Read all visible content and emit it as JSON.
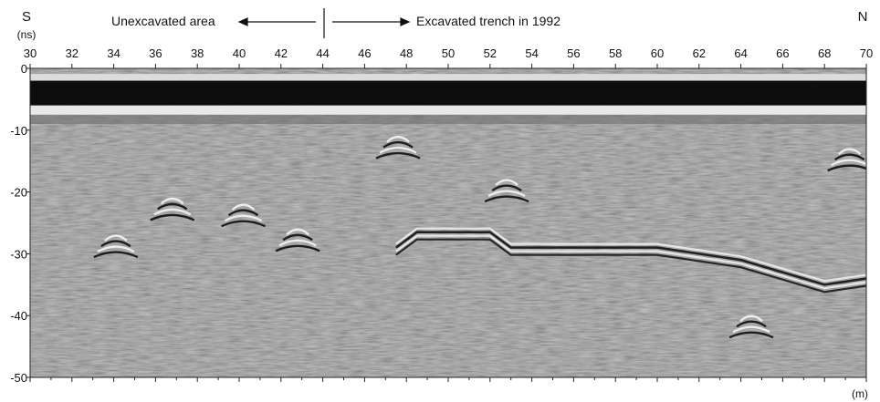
{
  "header": {
    "left_dir": "S",
    "right_dir": "N",
    "y_unit": "(ns)",
    "x_unit": "(m)",
    "annot_left": "Unexcavated area",
    "annot_right": "Excavated trench in 1992"
  },
  "colors": {
    "background": "#ffffff",
    "radargram_mid_gray": "#8a8a8a",
    "text": "#111111"
  },
  "chart_data": {
    "type": "heatmap",
    "subtype": "GPR radargram",
    "title": "",
    "xlabel": "(m)",
    "ylabel": "(ns)",
    "xlim": [
      30,
      70
    ],
    "ylim": [
      -50,
      0
    ],
    "x_ticks": [
      "30",
      "32",
      "34",
      "36",
      "38",
      "40",
      "42",
      "44",
      "46",
      "48",
      "50",
      "52",
      "54",
      "56",
      "58",
      "60",
      "62",
      "64",
      "66",
      "68",
      "70"
    ],
    "y_ticks": [
      "0",
      "-10",
      "-20",
      "-30",
      "-40",
      "-50"
    ],
    "divider_x": 44,
    "annotations": [
      {
        "text": "Unexcavated area",
        "direction": "left"
      },
      {
        "text": "Excavated trench in 1992",
        "direction": "right"
      }
    ],
    "direct_wave_band_ns": [
      -2,
      -6
    ],
    "reflectors": [
      {
        "x": 34.1,
        "y": -27
      },
      {
        "x": 36.8,
        "y": -21
      },
      {
        "x": 40.2,
        "y": -22
      },
      {
        "x": 42.8,
        "y": -26
      },
      {
        "x": 47.6,
        "y": -11
      },
      {
        "x": 52.8,
        "y": -18
      },
      {
        "x": 64.5,
        "y": -40
      },
      {
        "x": 69.2,
        "y": -13
      }
    ],
    "trench_floor": [
      {
        "x": 47.5,
        "y": -29
      },
      {
        "x": 48.5,
        "y": -26.5
      },
      {
        "x": 52,
        "y": -26.5
      },
      {
        "x": 53,
        "y": -29
      },
      {
        "x": 56,
        "y": -29
      },
      {
        "x": 60,
        "y": -29
      },
      {
        "x": 62,
        "y": -30
      },
      {
        "x": 64,
        "y": -31
      },
      {
        "x": 66,
        "y": -33
      },
      {
        "x": 68,
        "y": -35
      },
      {
        "x": 70,
        "y": -34
      }
    ]
  }
}
